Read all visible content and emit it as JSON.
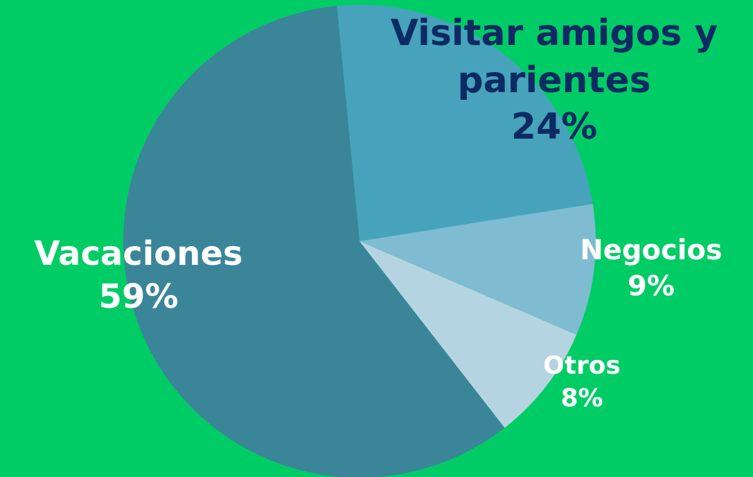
{
  "chart_data": {
    "type": "pie",
    "categories": [
      "Visitar amigos y parientes",
      "Negocios",
      "Otros",
      "Vacaciones"
    ],
    "values": [
      24,
      9,
      8,
      59
    ],
    "value_labels": [
      "24%",
      "9%",
      "8%",
      "59%"
    ],
    "colors": [
      "#46a3bb",
      "#7fbcd1",
      "#b5d4e1",
      "#3b8599"
    ],
    "label_colors": [
      "#0d2a63",
      "#ffffff",
      "#ffffff",
      "#ffffff"
    ]
  }
}
